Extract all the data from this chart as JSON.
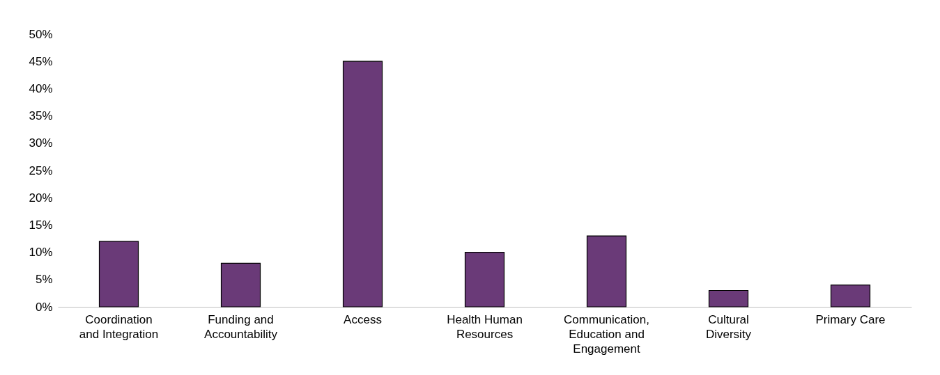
{
  "chart_data": {
    "type": "bar",
    "categories": [
      "Coordination and Integration",
      "Funding and Accountability",
      "Access",
      "Health Human Resources",
      "Communication, Education and Engagement",
      "Cultural Diversity",
      "Primary Care"
    ],
    "values": [
      12,
      8,
      45,
      10,
      13,
      3,
      4
    ],
    "color": "#6a3a78",
    "ylim": [
      0,
      50
    ],
    "yticks": [
      {
        "value": 0,
        "label": "0%"
      },
      {
        "value": 5,
        "label": "5%"
      },
      {
        "value": 10,
        "label": "10%"
      },
      {
        "value": 15,
        "label": "15%"
      },
      {
        "value": 20,
        "label": "20%"
      },
      {
        "value": 25,
        "label": "25%"
      },
      {
        "value": 30,
        "label": "30%"
      },
      {
        "value": 35,
        "label": "35%"
      },
      {
        "value": 40,
        "label": "40%"
      },
      {
        "value": 45,
        "label": "45%"
      },
      {
        "value": 50,
        "label": "50%"
      }
    ],
    "grid": false
  }
}
